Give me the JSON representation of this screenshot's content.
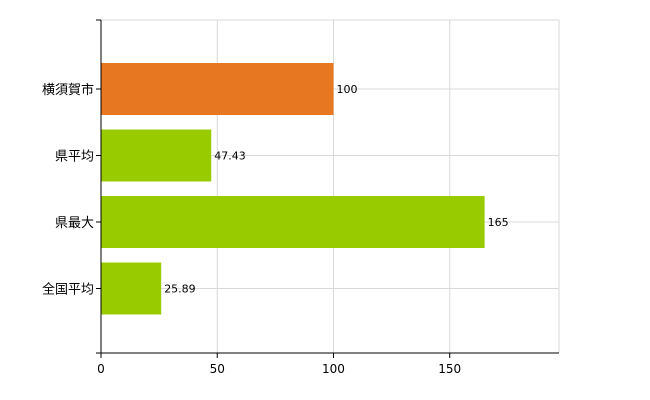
{
  "chart_data": {
    "type": "bar",
    "orientation": "horizontal",
    "categories": [
      "横須賀市",
      "県平均",
      "県最大",
      "全国平均"
    ],
    "values": [
      100,
      47.43,
      165,
      25.89
    ],
    "value_labels": [
      "100",
      "47.43",
      "165",
      "25.89"
    ],
    "bar_colors": [
      "#e87722",
      "#99cc00",
      "#99cc00",
      "#99cc00"
    ],
    "title": "",
    "xlabel": "",
    "ylabel": "",
    "xlim": [
      0,
      197
    ],
    "x_ticks": [
      0,
      50,
      100,
      150
    ],
    "x_tick_labels": [
      "0",
      "50",
      "100",
      "150"
    ],
    "grid": true,
    "legend": "none"
  }
}
